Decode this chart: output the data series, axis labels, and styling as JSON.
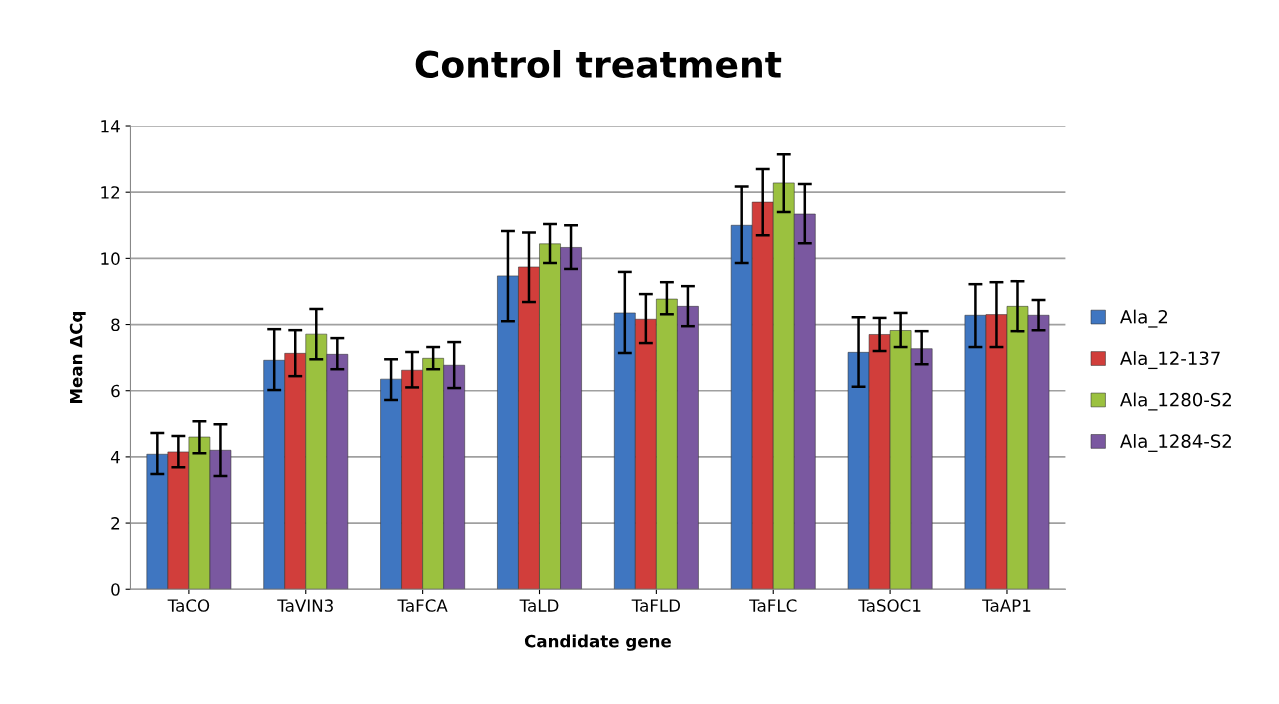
{
  "chart_data": {
    "type": "bar",
    "title": "Control treatment",
    "xlabel": "Candidate gene",
    "ylabel": "Mean ΔCq",
    "categories": [
      "TaCO",
      "TaVIN3",
      "TaFCA",
      "TaLD",
      "TaFLD",
      "TaFLC",
      "TaSOC1",
      "TaAP1"
    ],
    "series": [
      {
        "name": "Ala_2",
        "color": "#3f76c1",
        "values": [
          4.08,
          6.92,
          6.35,
          9.47,
          8.35,
          11.0,
          7.16,
          8.28
        ],
        "errors": [
          [
            3.48,
            4.72
          ],
          [
            6.02,
            7.86
          ],
          [
            5.72,
            6.95
          ],
          [
            8.1,
            10.83
          ],
          [
            7.14,
            9.59
          ],
          [
            9.86,
            12.17
          ],
          [
            6.12,
            8.22
          ],
          [
            7.32,
            9.22
          ]
        ]
      },
      {
        "name": "Ala_12-137",
        "color": "#d13e3b",
        "values": [
          4.15,
          7.13,
          6.62,
          9.74,
          8.16,
          11.7,
          7.7,
          8.3
        ],
        "errors": [
          [
            3.69,
            4.63
          ],
          [
            6.44,
            7.83
          ],
          [
            6.1,
            7.17
          ],
          [
            8.68,
            10.78
          ],
          [
            7.44,
            8.92
          ],
          [
            10.7,
            12.7
          ],
          [
            7.2,
            8.2
          ],
          [
            7.32,
            9.28
          ]
        ]
      },
      {
        "name": "Ala_1280-S2",
        "color": "#9bc13f",
        "values": [
          4.6,
          7.71,
          6.98,
          10.44,
          8.77,
          12.28,
          7.82,
          8.55
        ],
        "errors": [
          [
            4.11,
            5.08
          ],
          [
            6.95,
            8.47
          ],
          [
            6.65,
            7.32
          ],
          [
            9.86,
            11.04
          ],
          [
            8.31,
            9.28
          ],
          [
            11.4,
            13.15
          ],
          [
            7.32,
            8.35
          ],
          [
            7.8,
            9.31
          ]
        ]
      },
      {
        "name": "Ala_1284-S2",
        "color": "#7a58a0",
        "values": [
          4.2,
          7.1,
          6.77,
          10.33,
          8.55,
          11.34,
          7.27,
          8.28
        ],
        "errors": [
          [
            3.42,
            4.99
          ],
          [
            6.65,
            7.59
          ],
          [
            6.08,
            7.47
          ],
          [
            9.68,
            11.0
          ],
          [
            7.95,
            9.16
          ],
          [
            10.46,
            12.25
          ],
          [
            6.8,
            7.8
          ],
          [
            7.83,
            8.74
          ]
        ]
      }
    ],
    "ylim": [
      0,
      14
    ],
    "yticks": [
      0,
      2,
      4,
      6,
      8,
      10,
      12,
      14
    ],
    "grid": "y",
    "legend": "right"
  }
}
